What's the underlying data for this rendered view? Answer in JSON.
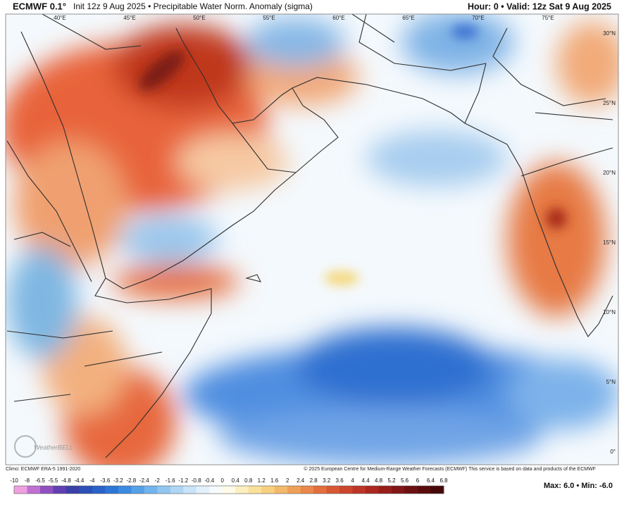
{
  "header": {
    "model": "ECMWF 0.1°",
    "description": "Init 12z 9 Aug 2025 • Precipitable Water Norm. Anomaly (sigma)",
    "valid": "Hour: 0 • Valid: 12z Sat 9 Aug 2025"
  },
  "map": {
    "lon_labels": [
      "40°E",
      "45°E",
      "50°E",
      "55°E",
      "60°E",
      "65°E",
      "70°E",
      "75°E"
    ],
    "lat_labels": [
      "30°N",
      "25°N",
      "20°N",
      "15°N",
      "10°N",
      "5°N",
      "0°"
    ],
    "logo": "WeatherBELL"
  },
  "footer": {
    "climo": "Climo: ECMWF ERA-5 1991-2020",
    "copyright": "© 2025 European Centre for Medium-Range Weather Forecasts (ECMWF)  This service is based on data and products of the ECMWF"
  },
  "colorbar": {
    "ticks": [
      -10,
      -8,
      -6.5,
      -5.5,
      -4.8,
      -4.4,
      -4,
      -3.6,
      -3.2,
      -2.8,
      -2.4,
      -2,
      -1.6,
      -1.2,
      -0.8,
      -0.4,
      0,
      0.4,
      0.8,
      1.2,
      1.6,
      2,
      2.4,
      2.8,
      3.2,
      3.6,
      4,
      4.4,
      4.8,
      5.2,
      5.6,
      6,
      6.4,
      6.8
    ],
    "extremes": "Max: 6.0 • Min: -6.0"
  }
}
